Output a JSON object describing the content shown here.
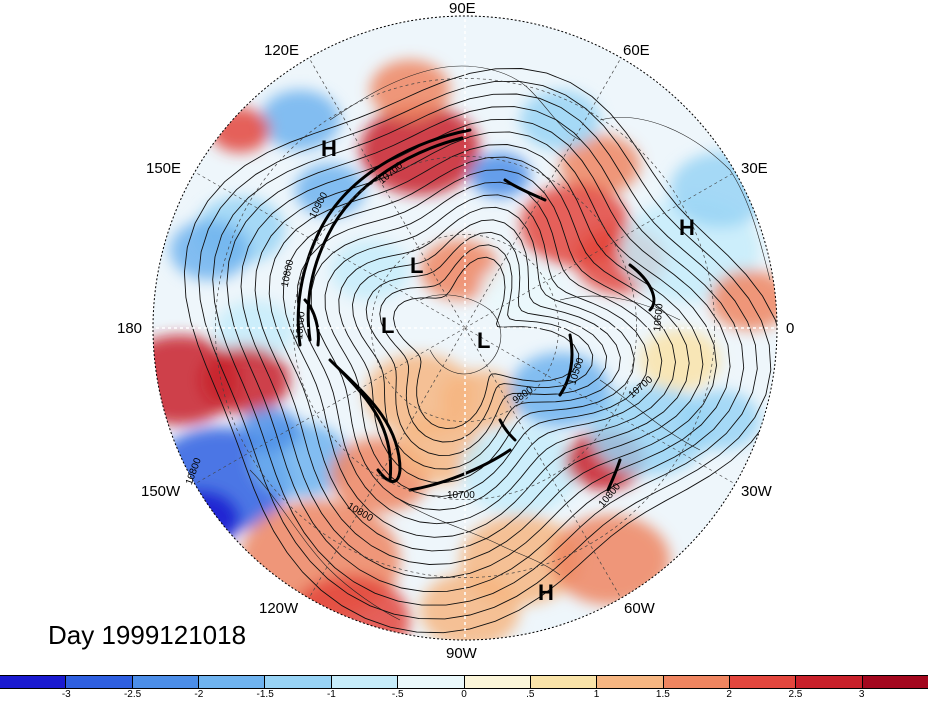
{
  "title": "Day 1999121018",
  "longitude_labels": [
    "90E",
    "60E",
    "30E",
    "0",
    "30W",
    "60W",
    "90W",
    "120W",
    "150W",
    "180",
    "150E",
    "120E"
  ],
  "pressure_centers": [
    "H",
    "H",
    "H",
    "L",
    "L",
    "L"
  ],
  "contour_labels": [
    "10900",
    "10800",
    "10700",
    "10500",
    "9800",
    "10600",
    "10700",
    "10800",
    "10800",
    "10800",
    "10700",
    "10600"
  ],
  "colorbar": {
    "tick_labels": [
      "-3",
      "-2.5",
      "-2",
      "-1.5",
      "-1",
      "-.5",
      "0",
      ".5",
      "1",
      "1.5",
      "2",
      "2.5",
      "3"
    ],
    "colors": [
      "#1a1ad0",
      "#2e5fe0",
      "#4c8ee8",
      "#6fb3ef",
      "#98d3f5",
      "#c6ecfa",
      "#eaf8fb",
      "#fbf5d9",
      "#f9e3a9",
      "#f6b682",
      "#ef8560",
      "#e3463d",
      "#c8202a",
      "#a3071e"
    ]
  }
}
